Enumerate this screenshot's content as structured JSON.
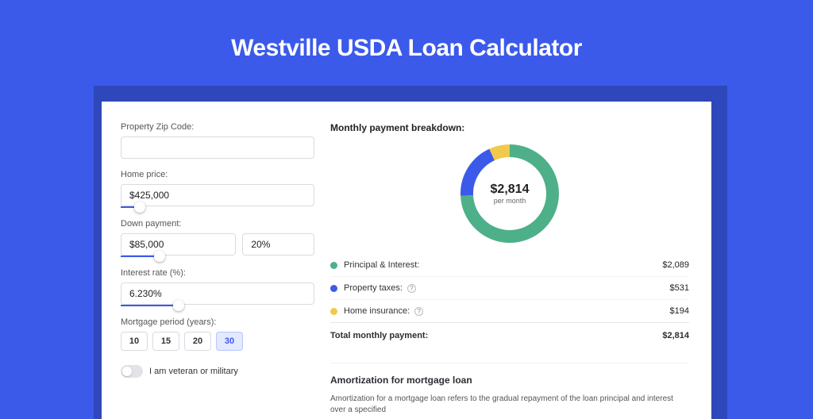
{
  "colors": {
    "page_bg": "#3b5aea",
    "card_bg": "#ffffff",
    "shadow": "#2e47ba",
    "accent": "#3b5aea",
    "input_border": "#d8dbe0",
    "green": "#4db088",
    "blue": "#3b5aea",
    "yellow": "#f2c94c",
    "row_border": "#f0f1f3"
  },
  "page_title": "Westville USDA Loan Calculator",
  "form": {
    "zip": {
      "label": "Property Zip Code:",
      "value": ""
    },
    "home_price": {
      "label": "Home price:",
      "value": "$425,000",
      "slider_pct": 10
    },
    "down_payment": {
      "label": "Down payment:",
      "amount": "$85,000",
      "pct": "20%",
      "slider_pct": 20
    },
    "interest": {
      "label": "Interest rate (%):",
      "value": "6.230%",
      "slider_pct": 30
    },
    "period": {
      "label": "Mortgage period (years):",
      "options": [
        "10",
        "15",
        "20",
        "30"
      ],
      "selected": "30"
    },
    "veteran": {
      "label": "I am veteran or military",
      "on": false
    }
  },
  "breakdown": {
    "title": "Monthly payment breakdown:",
    "chart": {
      "type": "donut",
      "center_amount": "$2,814",
      "center_sub": "per month",
      "background": "#ffffff",
      "ring_width": 16,
      "slices": [
        {
          "key": "principal_interest",
          "value": 2089,
          "pct": 74.2,
          "color": "#4db088"
        },
        {
          "key": "property_taxes",
          "value": 531,
          "pct": 18.9,
          "color": "#3b5aea"
        },
        {
          "key": "home_insurance",
          "value": 194,
          "pct": 6.9,
          "color": "#f2c94c"
        }
      ]
    },
    "rows": [
      {
        "label": "Principal & Interest:",
        "value": "$2,089",
        "color": "#4db088",
        "help": false
      },
      {
        "label": "Property taxes:",
        "value": "$531",
        "color": "#3b5aea",
        "help": true
      },
      {
        "label": "Home insurance:",
        "value": "$194",
        "color": "#f2c94c",
        "help": true
      }
    ],
    "total": {
      "label": "Total monthly payment:",
      "value": "$2,814"
    }
  },
  "amortization": {
    "title": "Amortization for mortgage loan",
    "text": "Amortization for a mortgage loan refers to the gradual repayment of the loan principal and interest over a specified"
  }
}
